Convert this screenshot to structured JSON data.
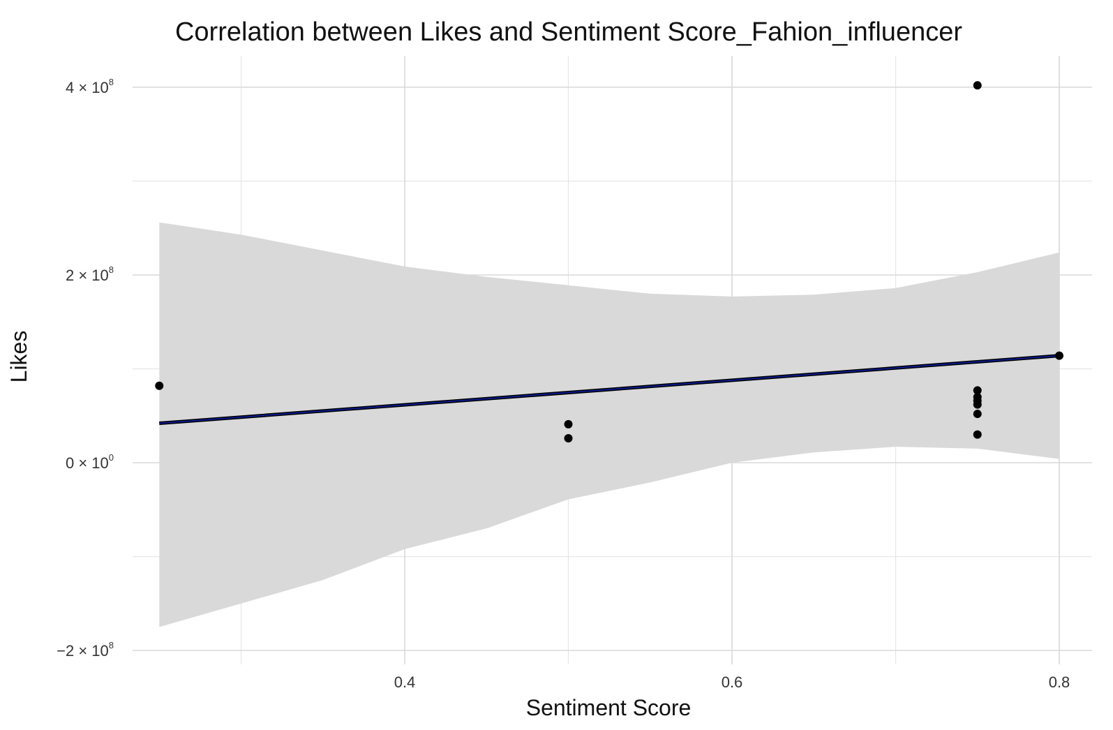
{
  "chart_data": {
    "type": "scatter",
    "title": "Correlation between Likes and Sentiment Score_Fahion_influencer",
    "xlabel": "Sentiment Score",
    "ylabel": "Likes",
    "xlim": [
      0.225,
      0.825
    ],
    "ylim": [
      -210000000,
      410000000
    ],
    "x_ticks": [
      {
        "value": 0.4,
        "label": "0.4"
      },
      {
        "value": 0.6,
        "label": "0.6"
      },
      {
        "value": 0.8,
        "label": "0.8"
      }
    ],
    "y_ticks": [
      {
        "value": -200000000,
        "mantissa": "−2",
        "exponent": "8"
      },
      {
        "value": 0,
        "mantissa": "0",
        "exponent": "0"
      },
      {
        "value": 200000000,
        "mantissa": "2",
        "exponent": "8"
      },
      {
        "value": 400000000,
        "mantissa": "4",
        "exponent": "8"
      }
    ],
    "x_minor_ticks": [
      0.3,
      0.5,
      0.7
    ],
    "y_minor_ticks": [
      -100000000,
      100000000,
      300000000
    ],
    "grid": true,
    "points": [
      {
        "x": 0.25,
        "y": 82000000
      },
      {
        "x": 0.5,
        "y": 41000000
      },
      {
        "x": 0.5,
        "y": 26000000
      },
      {
        "x": 0.75,
        "y": 402000000
      },
      {
        "x": 0.75,
        "y": 77000000
      },
      {
        "x": 0.75,
        "y": 70000000
      },
      {
        "x": 0.75,
        "y": 66000000
      },
      {
        "x": 0.75,
        "y": 62000000
      },
      {
        "x": 0.75,
        "y": 52000000
      },
      {
        "x": 0.75,
        "y": 30000000
      },
      {
        "x": 0.8,
        "y": 114000000
      }
    ],
    "regression_line": {
      "x": [
        0.25,
        0.8
      ],
      "y": [
        42000000,
        114000000
      ],
      "color": "#0b1a8c"
    },
    "confidence_band": {
      "x": [
        0.25,
        0.3,
        0.35,
        0.4,
        0.45,
        0.5,
        0.55,
        0.6,
        0.65,
        0.7,
        0.75,
        0.8
      ],
      "upper": [
        256000000,
        243000000,
        226000000,
        209000000,
        198000000,
        189000000,
        180000000,
        177000000,
        179000000,
        186000000,
        203000000,
        224000000
      ],
      "lower": [
        -175000000,
        -150000000,
        -125000000,
        -92000000,
        -70000000,
        -39000000,
        -21000000,
        0,
        11000000,
        17000000,
        15000000,
        4000000
      ],
      "color": "#d9d9d9"
    },
    "point_color": "#000000"
  }
}
